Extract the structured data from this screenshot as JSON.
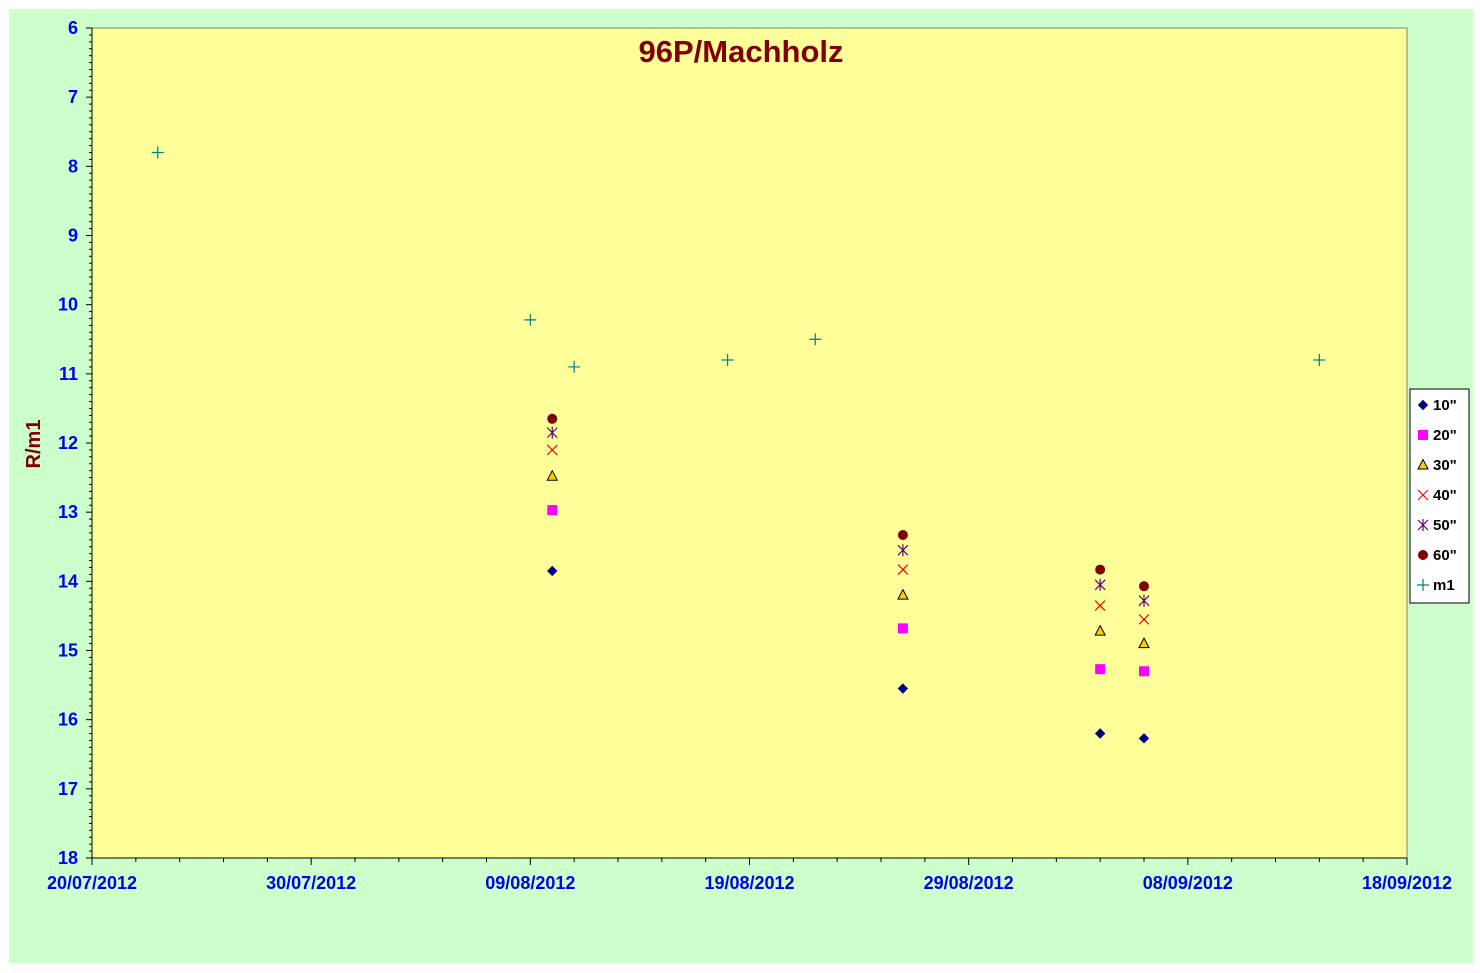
{
  "chart_data": {
    "type": "scatter",
    "title": "96P/Machholz",
    "xlabel": "",
    "ylabel": "R/m1",
    "y_inverted": true,
    "ylim": [
      6,
      18
    ],
    "y_ticks": [
      "6",
      "7",
      "8",
      "9",
      "10",
      "11",
      "12",
      "13",
      "14",
      "15",
      "16",
      "17",
      "18"
    ],
    "x_range": [
      "2012-07-20",
      "2012-09-18"
    ],
    "x_ticks": [
      "20/07/2012",
      "30/07/2012",
      "09/08/2012",
      "19/08/2012",
      "29/08/2012",
      "08/09/2012",
      "18/09/2012"
    ],
    "grid": false,
    "legend_position": "right",
    "colors": {
      "plot_background": "#ffff99",
      "chart_background": "#ccffcc",
      "axis_text": "#0000ee",
      "title_text": "#800000"
    },
    "series": [
      {
        "name": "10\"",
        "marker": "diamond",
        "color": "#000080",
        "points": [
          {
            "x": "2012-08-10",
            "y": 13.85
          },
          {
            "x": "2012-08-26",
            "y": 15.55
          },
          {
            "x": "2012-09-04",
            "y": 16.2
          },
          {
            "x": "2012-09-06",
            "y": 16.27
          }
        ]
      },
      {
        "name": "20\"",
        "marker": "square",
        "color": "#ff00ff",
        "points": [
          {
            "x": "2012-08-10",
            "y": 12.97
          },
          {
            "x": "2012-08-26",
            "y": 14.68
          },
          {
            "x": "2012-09-04",
            "y": 15.27
          },
          {
            "x": "2012-09-06",
            "y": 15.3
          }
        ]
      },
      {
        "name": "30\"",
        "marker": "triangle",
        "color": "#ffcc00",
        "points": [
          {
            "x": "2012-08-10",
            "y": 12.48
          },
          {
            "x": "2012-08-26",
            "y": 14.2
          },
          {
            "x": "2012-09-04",
            "y": 14.72
          },
          {
            "x": "2012-09-06",
            "y": 14.9
          }
        ]
      },
      {
        "name": "40\"",
        "marker": "x",
        "color": "#ff0000",
        "points": [
          {
            "x": "2012-08-10",
            "y": 12.1
          },
          {
            "x": "2012-08-26",
            "y": 13.83
          },
          {
            "x": "2012-09-04",
            "y": 14.35
          },
          {
            "x": "2012-09-06",
            "y": 14.55
          }
        ]
      },
      {
        "name": "50\"",
        "marker": "star",
        "color": "#660066",
        "points": [
          {
            "x": "2012-08-10",
            "y": 11.85
          },
          {
            "x": "2012-08-26",
            "y": 13.55
          },
          {
            "x": "2012-09-04",
            "y": 14.05
          },
          {
            "x": "2012-09-06",
            "y": 14.28
          }
        ]
      },
      {
        "name": "60\"",
        "marker": "circle",
        "color": "#800000",
        "points": [
          {
            "x": "2012-08-10",
            "y": 11.65
          },
          {
            "x": "2012-08-26",
            "y": 13.33
          },
          {
            "x": "2012-09-04",
            "y": 13.83
          },
          {
            "x": "2012-09-06",
            "y": 14.07
          }
        ]
      },
      {
        "name": "m1",
        "marker": "plus",
        "color": "#008080",
        "points": [
          {
            "x": "2012-07-23",
            "y": 7.8
          },
          {
            "x": "2012-08-09",
            "y": 10.22
          },
          {
            "x": "2012-08-11",
            "y": 10.9
          },
          {
            "x": "2012-08-18",
            "y": 10.8
          },
          {
            "x": "2012-08-22",
            "y": 10.5
          },
          {
            "x": "2012-09-14",
            "y": 10.8
          }
        ]
      }
    ]
  }
}
